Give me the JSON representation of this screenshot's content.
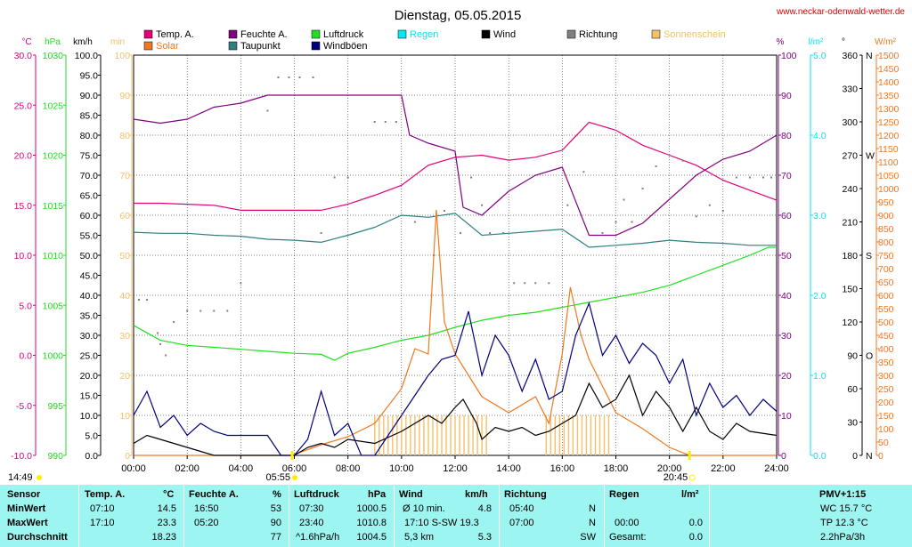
{
  "title": "Dienstag, 05.05.2015",
  "site": "www.neckar-odenwald-wetter.de",
  "colors": {
    "temp": "#e0007a",
    "humidity": "#800080",
    "pressure": "#22dd22",
    "rain": "#00e8f0",
    "wind": "#000000",
    "direction": "#808080",
    "sunshine": "#f5c068",
    "solar": "#f07820",
    "dewpoint": "#2f7f7f",
    "gusts": "#00007f",
    "table_bg": "#9cf5f0"
  },
  "legend": [
    {
      "label": "Temp. A.",
      "color": "#e0007a"
    },
    {
      "label": "Feuchte A.",
      "color": "#800080"
    },
    {
      "label": "Luftdruck",
      "color": "#22dd22"
    },
    {
      "label": "Regen",
      "color": "#00e8f0"
    },
    {
      "label": "Wind",
      "color": "#000000"
    },
    {
      "label": "Richtung",
      "color": "#808080"
    },
    {
      "label": "Sonnenschein",
      "color": "#f5c068"
    },
    {
      "label": "Solar",
      "color": "#f07820"
    },
    {
      "label": "Taupunkt",
      "color": "#2f7f7f"
    },
    {
      "label": "Windböen",
      "color": "#00007f"
    }
  ],
  "axis_units": {
    "temp": "°C",
    "pressure": "hPa",
    "wind": "km/h",
    "sunshine": "min",
    "humidity": "%",
    "rain": "l/m²",
    "direction": "°",
    "solar": "W/m²"
  },
  "sun": {
    "sunrise": "05:55",
    "sunset": "20:45",
    "daylight": "14:49"
  },
  "chart_data": {
    "type": "line",
    "x_range": [
      "00:00",
      "24:00"
    ],
    "x_ticks": [
      "00:00",
      "02:00",
      "04:00",
      "06:00",
      "08:00",
      "10:00",
      "12:00",
      "14:00",
      "16:00",
      "18:00",
      "20:00",
      "22:00",
      "24:00"
    ],
    "axes": {
      "temp": {
        "min": -10,
        "max": 30,
        "step": 5
      },
      "pressure": {
        "min": 990,
        "max": 1030,
        "step": 5
      },
      "wind": {
        "min": 0,
        "max": 100,
        "step": 5
      },
      "sunshine": {
        "min": 0,
        "max": 100,
        "step": 10
      },
      "humidity": {
        "min": 0,
        "max": 100,
        "step": 10
      },
      "rain": {
        "min": 0,
        "max": 5,
        "step": 1
      },
      "direction": {
        "min": 0,
        "max": 360,
        "step": 30,
        "labels": {
          "0": "N",
          "90": "O",
          "180": "S",
          "270": "W",
          "360": "N"
        }
      },
      "solar": {
        "min": 0,
        "max": 1500,
        "step": 50
      }
    },
    "series": [
      {
        "name": "Temp. A.",
        "axis": "temp",
        "points": [
          [
            0,
            15.2
          ],
          [
            1,
            15.2
          ],
          [
            2,
            15.1
          ],
          [
            3,
            15
          ],
          [
            4,
            14.5
          ],
          [
            5,
            14.5
          ],
          [
            6,
            14.5
          ],
          [
            7,
            14.5
          ],
          [
            8,
            15.1
          ],
          [
            9,
            16
          ],
          [
            10,
            17
          ],
          [
            11,
            19
          ],
          [
            12,
            19.8
          ],
          [
            13,
            20
          ],
          [
            14,
            19.5
          ],
          [
            15,
            19.8
          ],
          [
            16,
            20.5
          ],
          [
            17,
            23.3
          ],
          [
            18,
            22.5
          ],
          [
            19,
            21
          ],
          [
            20,
            20
          ],
          [
            21,
            19
          ],
          [
            22,
            17.5
          ],
          [
            23,
            16.5
          ],
          [
            24,
            15.5
          ]
        ]
      },
      {
        "name": "Feuchte A.",
        "axis": "humidity",
        "points": [
          [
            0,
            84
          ],
          [
            1,
            83
          ],
          [
            2,
            84
          ],
          [
            3,
            87
          ],
          [
            4,
            88
          ],
          [
            5,
            90
          ],
          [
            6,
            90
          ],
          [
            7,
            90
          ],
          [
            8,
            90
          ],
          [
            9,
            90
          ],
          [
            10,
            90
          ],
          [
            10.3,
            80
          ],
          [
            11,
            78
          ],
          [
            12,
            76
          ],
          [
            12.3,
            62
          ],
          [
            13,
            60
          ],
          [
            14,
            66
          ],
          [
            15,
            70
          ],
          [
            16,
            72
          ],
          [
            17,
            55
          ],
          [
            18,
            55
          ],
          [
            19,
            58
          ],
          [
            20,
            64
          ],
          [
            21,
            70
          ],
          [
            22,
            74
          ],
          [
            23,
            76
          ],
          [
            24,
            80
          ]
        ]
      },
      {
        "name": "Luftdruck",
        "axis": "pressure",
        "points": [
          [
            0,
            1003
          ],
          [
            1,
            1001.5
          ],
          [
            2,
            1001
          ],
          [
            3,
            1000.8
          ],
          [
            4,
            1000.6
          ],
          [
            5,
            1000.4
          ],
          [
            6,
            1000.2
          ],
          [
            7,
            1000.1
          ],
          [
            7.5,
            999.5
          ],
          [
            8,
            1000.2
          ],
          [
            9,
            1000.8
          ],
          [
            10,
            1001.5
          ],
          [
            11,
            1002
          ],
          [
            12,
            1002.8
          ],
          [
            13,
            1003.5
          ],
          [
            14,
            1004
          ],
          [
            15,
            1004.3
          ],
          [
            16,
            1004.8
          ],
          [
            17,
            1005.3
          ],
          [
            18,
            1005.8
          ],
          [
            19,
            1006.3
          ],
          [
            20,
            1007
          ],
          [
            21,
            1008
          ],
          [
            22,
            1009
          ],
          [
            23,
            1010
          ],
          [
            23.7,
            1010.8
          ],
          [
            24,
            1010.8
          ]
        ]
      },
      {
        "name": "Taupunkt",
        "axis": "temp",
        "points": [
          [
            0,
            12.3
          ],
          [
            1,
            12.2
          ],
          [
            2,
            12.2
          ],
          [
            3,
            12
          ],
          [
            4,
            11.9
          ],
          [
            5,
            11.6
          ],
          [
            6,
            11.5
          ],
          [
            7,
            11.3
          ],
          [
            8,
            12
          ],
          [
            9,
            12.8
          ],
          [
            10,
            14
          ],
          [
            11,
            13.8
          ],
          [
            12,
            14.2
          ],
          [
            13,
            12
          ],
          [
            14,
            12.2
          ],
          [
            15,
            12.4
          ],
          [
            16,
            12.6
          ],
          [
            17,
            10.8
          ],
          [
            18,
            11
          ],
          [
            19,
            11.2
          ],
          [
            20,
            11.5
          ],
          [
            21,
            11.3
          ],
          [
            22,
            11.2
          ],
          [
            23,
            11
          ],
          [
            24,
            11
          ]
        ]
      },
      {
        "name": "Solar",
        "axis": "solar",
        "points": [
          [
            0,
            0
          ],
          [
            5.9,
            0
          ],
          [
            7,
            40
          ],
          [
            8,
            70
          ],
          [
            9,
            120
          ],
          [
            10,
            250
          ],
          [
            10.5,
            400
          ],
          [
            11,
            380
          ],
          [
            11.3,
            920
          ],
          [
            11.6,
            500
          ],
          [
            12,
            380
          ],
          [
            13,
            220
          ],
          [
            14,
            160
          ],
          [
            15,
            220
          ],
          [
            15.5,
            120
          ],
          [
            16,
            380
          ],
          [
            16.3,
            630
          ],
          [
            16.7,
            450
          ],
          [
            17,
            360
          ],
          [
            18,
            160
          ],
          [
            19,
            100
          ],
          [
            20,
            30
          ],
          [
            20.75,
            0
          ],
          [
            24,
            0
          ]
        ]
      },
      {
        "name": "Wind",
        "axis": "wind",
        "points": [
          [
            0,
            3
          ],
          [
            0.5,
            5
          ],
          [
            1,
            4
          ],
          [
            1.5,
            3
          ],
          [
            2,
            2
          ],
          [
            2.5,
            1
          ],
          [
            3,
            0
          ],
          [
            4,
            0
          ],
          [
            5,
            0
          ],
          [
            6,
            0
          ],
          [
            6.5,
            2
          ],
          [
            7,
            3
          ],
          [
            7.5,
            2
          ],
          [
            8,
            4
          ],
          [
            9,
            3
          ],
          [
            10,
            6
          ],
          [
            10.5,
            8
          ],
          [
            11,
            10
          ],
          [
            11.5,
            8
          ],
          [
            12,
            12
          ],
          [
            12.3,
            14
          ],
          [
            12.8,
            8
          ],
          [
            13,
            4
          ],
          [
            13.5,
            7
          ],
          [
            14,
            6
          ],
          [
            14.5,
            7
          ],
          [
            15,
            5
          ],
          [
            15.5,
            6
          ],
          [
            16,
            8
          ],
          [
            16.5,
            10
          ],
          [
            17,
            18
          ],
          [
            17.5,
            12
          ],
          [
            18,
            14
          ],
          [
            18.5,
            20
          ],
          [
            19,
            10
          ],
          [
            19.5,
            16
          ],
          [
            20,
            12
          ],
          [
            20.5,
            6
          ],
          [
            21,
            12
          ],
          [
            21.5,
            6
          ],
          [
            22,
            4
          ],
          [
            22.5,
            8
          ],
          [
            23,
            6
          ],
          [
            24,
            5
          ]
        ]
      },
      {
        "name": "Windböen",
        "axis": "wind",
        "points": [
          [
            0,
            10
          ],
          [
            0.5,
            16
          ],
          [
            1,
            7
          ],
          [
            1.5,
            10
          ],
          [
            2,
            5
          ],
          [
            2.5,
            8
          ],
          [
            3,
            6
          ],
          [
            3.5,
            5
          ],
          [
            4,
            5
          ],
          [
            5,
            5
          ],
          [
            5.5,
            0
          ],
          [
            6,
            0
          ],
          [
            6.5,
            4
          ],
          [
            7,
            16
          ],
          [
            7.5,
            5
          ],
          [
            8,
            8
          ],
          [
            8.5,
            0
          ],
          [
            9,
            0
          ],
          [
            10,
            10
          ],
          [
            10.5,
            15
          ],
          [
            11,
            20
          ],
          [
            11.5,
            24
          ],
          [
            12,
            25
          ],
          [
            12.5,
            36
          ],
          [
            13,
            20
          ],
          [
            13.5,
            30
          ],
          [
            14,
            25
          ],
          [
            14.5,
            16
          ],
          [
            15,
            24
          ],
          [
            15.5,
            14
          ],
          [
            16,
            16
          ],
          [
            16.5,
            30
          ],
          [
            17,
            38
          ],
          [
            17.5,
            25
          ],
          [
            18,
            30
          ],
          [
            18.5,
            23
          ],
          [
            19,
            28
          ],
          [
            19.5,
            25
          ],
          [
            20,
            18
          ],
          [
            20.5,
            24
          ],
          [
            21,
            10
          ],
          [
            21.5,
            18
          ],
          [
            22,
            12
          ],
          [
            22.5,
            15
          ],
          [
            23,
            10
          ],
          [
            23.5,
            14
          ],
          [
            24,
            11
          ]
        ]
      }
    ],
    "direction_points": [
      [
        0.2,
        140
      ],
      [
        0.5,
        140
      ],
      [
        0.9,
        110
      ],
      [
        1,
        100
      ],
      [
        1.2,
        90
      ],
      [
        1.5,
        120
      ],
      [
        2,
        130
      ],
      [
        2.5,
        130
      ],
      [
        3,
        130
      ],
      [
        3.5,
        130
      ],
      [
        4,
        155
      ],
      [
        5,
        310
      ],
      [
        5.4,
        340
      ],
      [
        5.8,
        340
      ],
      [
        6.2,
        340
      ],
      [
        6.7,
        340
      ],
      [
        7,
        200
      ],
      [
        7.5,
        250
      ],
      [
        8,
        250
      ],
      [
        8.5,
        230
      ],
      [
        9,
        300
      ],
      [
        9.4,
        300
      ],
      [
        9.8,
        300
      ],
      [
        10.5,
        210
      ],
      [
        11.2,
        180
      ],
      [
        11.6,
        220
      ],
      [
        12.2,
        200
      ],
      [
        12.6,
        250
      ],
      [
        13,
        225
      ],
      [
        13.3,
        200
      ],
      [
        13.8,
        200
      ],
      [
        14.2,
        155
      ],
      [
        14.6,
        155
      ],
      [
        15,
        155
      ],
      [
        15.5,
        155
      ],
      [
        16.2,
        225
      ],
      [
        16.8,
        255
      ],
      [
        17.5,
        200
      ],
      [
        18,
        210
      ],
      [
        18.3,
        230
      ],
      [
        18.6,
        210
      ],
      [
        19,
        240
      ],
      [
        19.5,
        260
      ],
      [
        20,
        270
      ],
      [
        20.5,
        265
      ],
      [
        21,
        215
      ],
      [
        21.5,
        225
      ],
      [
        22,
        220
      ],
      [
        22.5,
        250
      ],
      [
        23,
        250
      ],
      [
        23.5,
        250
      ],
      [
        23.8,
        250
      ]
    ],
    "sunshine_bars": {
      "value": 10,
      "intervals": [
        [
          9.0,
          13.2
        ],
        [
          15.4,
          17.9
        ]
      ]
    },
    "rain_points": []
  },
  "table": {
    "headers": {
      "sensor": "Sensor",
      "temp": "Temp. A.",
      "temp_unit": "°C",
      "humidity": "Feuchte A.",
      "humidity_unit": "%",
      "pressure": "Luftdruck",
      "pressure_unit": "hPa",
      "wind": "Wind",
      "wind_unit": "km/h",
      "direction": "Richtung",
      "rain": "Regen",
      "rain_unit": "l/m²",
      "extra": "PMV+1:15"
    },
    "rows": [
      {
        "label": "MinWert",
        "temp_time": "07:10",
        "temp": "14.5",
        "hum_time": "16:50",
        "hum": "53",
        "press_time": "07:30",
        "press": "1000.5",
        "wind_lbl": "Ø 10 min.",
        "wind_val": "4.8",
        "dir_time": "05:40",
        "dir_val": "N",
        "rain_time": "",
        "rain_val": "",
        "extra": "WC 15.7 °C"
      },
      {
        "label": "MaxWert",
        "temp_time": "17:10",
        "temp": "23.3",
        "hum_time": "05:20",
        "hum": "90",
        "press_time": "23:40",
        "press": "1010.8",
        "wind_lbl": "17:10   S-SW 19.3",
        "wind_val": "",
        "dir_time": "07:00",
        "dir_val": "N",
        "rain_time": "00:00",
        "rain_val": "0.0",
        "extra": "TP 12.3 °C"
      },
      {
        "label": "Durchschnitt",
        "temp_time": "",
        "temp": "18.23",
        "hum_time": "",
        "hum": "77",
        "press_time": "^1.6hPa/h",
        "press": "1004.5",
        "wind_lbl": "5,3 km",
        "wind_val": "5.3",
        "dir_time": "",
        "dir_val": "SW",
        "rain_time": "Gesamt:",
        "rain_val": "0.0",
        "extra": "2.2hPa/3h"
      }
    ]
  }
}
